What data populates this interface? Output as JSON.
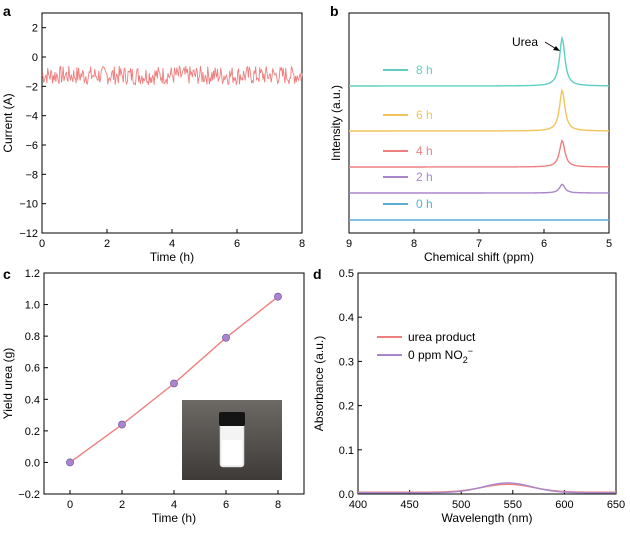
{
  "chart_data": [
    {
      "panel": "a",
      "type": "line",
      "xlabel": "Time (h)",
      "ylabel": "Current (A)",
      "xlim": [
        0,
        8
      ],
      "ylim": [
        -12,
        3
      ],
      "xticks": [
        0,
        2,
        4,
        6,
        8
      ],
      "yticks": [
        2,
        0,
        -2,
        -4,
        -6,
        -8,
        -10,
        -12
      ],
      "series": [
        {
          "color": "#ef7f7f",
          "mean": -1.25,
          "noise_range": [
            -1.9,
            -0.6
          ]
        }
      ]
    },
    {
      "panel": "b",
      "type": "line",
      "xlabel": "Chemical shift (ppm)",
      "ylabel": "Intensity (a.u.)",
      "xlim": [
        9,
        5
      ],
      "xticks": [
        9,
        8,
        7,
        6,
        5
      ],
      "annotation": "Urea",
      "peak_position_ppm": 5.72,
      "series": [
        {
          "name": "8 h",
          "color": "#5fcfc4",
          "relative_peak_height": 1.0
        },
        {
          "name": "6 h",
          "color": "#f2c45c",
          "relative_peak_height": 0.85
        },
        {
          "name": "4 h",
          "color": "#ef7f7f",
          "relative_peak_height": 0.55
        },
        {
          "name": "2 h",
          "color": "#a986cc",
          "relative_peak_height": 0.18
        },
        {
          "name": "0 h",
          "color": "#5aaed6",
          "relative_peak_height": 0.0
        }
      ]
    },
    {
      "panel": "c",
      "type": "line",
      "xlabel": "Time (h)",
      "ylabel": "Yield urea (g)",
      "xlim": [
        -1,
        9
      ],
      "ylim": [
        -0.2,
        1.2
      ],
      "xticks": [
        0,
        2,
        4,
        6,
        8
      ],
      "yticks": [
        1.2,
        1.0,
        0.8,
        0.6,
        0.4,
        0.2,
        0.0,
        -0.2
      ],
      "series": [
        {
          "color": "#ef7f7f",
          "marker_color": "#a986cc",
          "x": [
            0,
            2,
            4,
            6,
            8
          ],
          "y": [
            0.0,
            0.24,
            0.5,
            0.79,
            1.05
          ]
        }
      ]
    },
    {
      "panel": "d",
      "type": "line",
      "xlabel": "Wavelength (nm)",
      "ylabel": "Absorbance (a.u.)",
      "xlim": [
        400,
        650
      ],
      "ylim": [
        0,
        0.5
      ],
      "xticks": [
        400,
        450,
        500,
        550,
        600,
        650
      ],
      "yticks": [
        0.5,
        0.4,
        0.3,
        0.2,
        0.1,
        0.0
      ],
      "series": [
        {
          "name": "urea product",
          "color": "#ef7f7f"
        },
        {
          "name": "0 ppm NO2⁻",
          "color": "#a986cc",
          "peak_x": 545,
          "peak_y": 0.025
        }
      ]
    }
  ],
  "labels": {
    "a": "a",
    "b": "b",
    "c": "c",
    "d": "d",
    "legend_d_1": "urea product",
    "legend_d_2_base": "0 ppm NO",
    "legend_d_2_sub": "2",
    "legend_d_2_sup": "−"
  }
}
